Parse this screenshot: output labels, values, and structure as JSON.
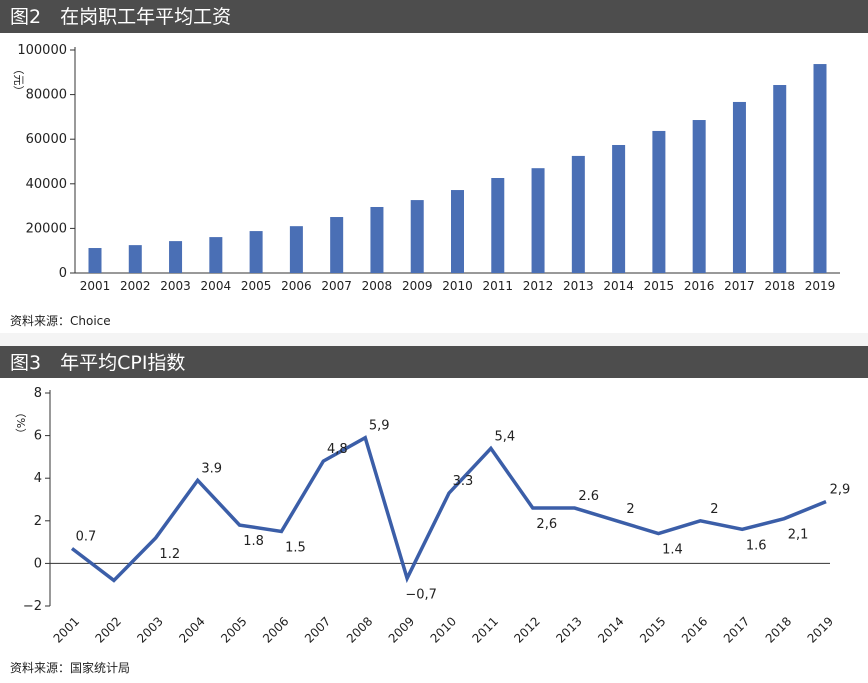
{
  "chart_data": [
    {
      "type": "bar",
      "title": "图2　在岗职工年平均工资",
      "y_label": "（元）",
      "source": "资料来源：Choice",
      "categories": [
        "2001",
        "2002",
        "2003",
        "2004",
        "2005",
        "2006",
        "2007",
        "2008",
        "2009",
        "2010",
        "2011",
        "2012",
        "2013",
        "2014",
        "2015",
        "2016",
        "2017",
        "2018",
        "2019"
      ],
      "values": [
        11200,
        12500,
        14300,
        16100,
        18800,
        21000,
        25100,
        29600,
        32700,
        37200,
        42600,
        47000,
        52500,
        57400,
        63700,
        68600,
        76700,
        84300,
        93700
      ],
      "color": "#4a6fb5",
      "ylim": [
        0,
        100000
      ],
      "yticks": [
        0,
        20000,
        40000,
        60000,
        80000,
        100000
      ]
    },
    {
      "type": "line",
      "title": "图3　年平均CPI指数",
      "y_label": "（%）",
      "source": "资料来源：国家统计局",
      "categories": [
        "2001",
        "2002",
        "2003",
        "2004",
        "2005",
        "2006",
        "2007",
        "2008",
        "2009",
        "2010",
        "2011",
        "2012",
        "2013",
        "2014",
        "2015",
        "2016",
        "2017",
        "2018",
        "2019"
      ],
      "values": [
        0.7,
        -0.8,
        1.2,
        3.9,
        1.8,
        1.5,
        4.8,
        5.9,
        -0.7,
        3.3,
        5.4,
        2.6,
        2.6,
        2.0,
        1.4,
        2.0,
        1.6,
        2.1,
        2.9
      ],
      "value_labels": [
        "0.7",
        null,
        "1.2",
        "3.9",
        "1.8",
        "1.5",
        "4,8",
        "5,9",
        "−0,7",
        "3.3",
        "5,4",
        "2,6",
        "2.6",
        "2",
        "1.4",
        "2",
        "1.6",
        "2,1",
        "2,9"
      ],
      "color": "#3b5ea8",
      "ylim": [
        -2,
        8
      ],
      "yticks": [
        {
          "value": -2,
          "label": "−2"
        },
        0,
        2,
        4,
        6,
        8
      ]
    }
  ]
}
